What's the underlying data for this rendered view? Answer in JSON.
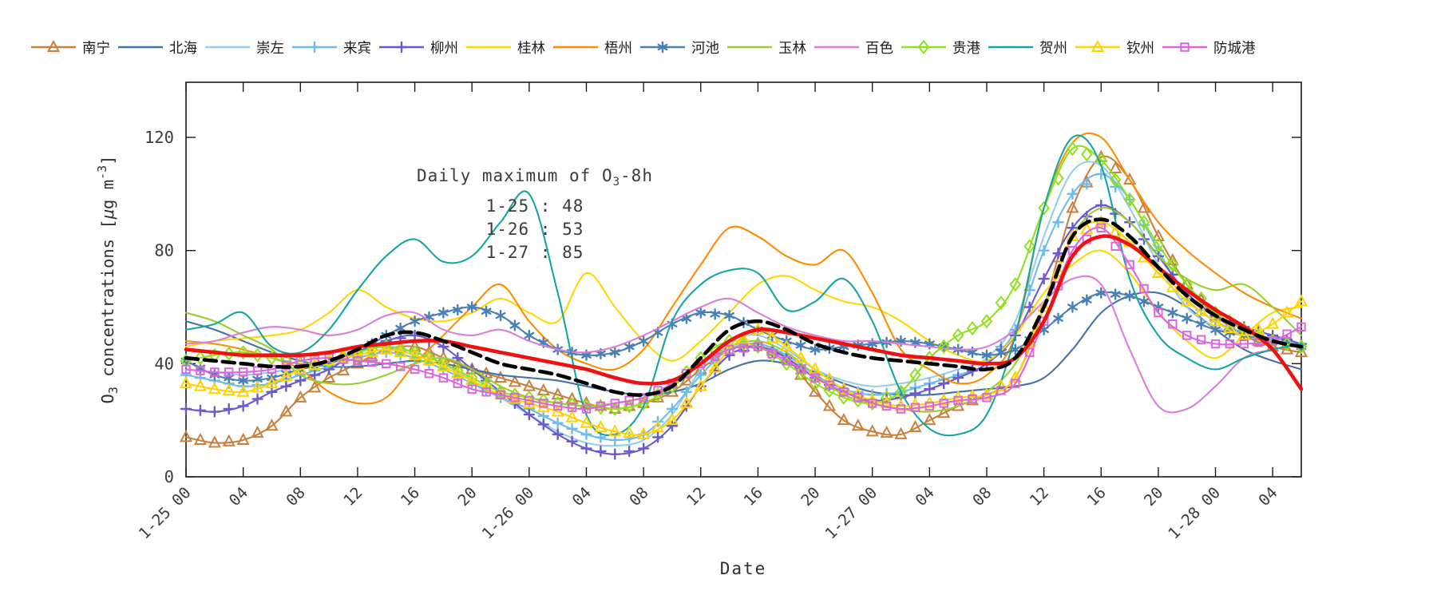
{
  "figure": {
    "background": "#ffffff"
  },
  "legend": {
    "items": [
      {
        "label": "南宁",
        "color": "#C8803C",
        "marker": "triangle"
      },
      {
        "label": "北海",
        "color": "#4472A8",
        "marker": "none"
      },
      {
        "label": "崇左",
        "color": "#93CEF0",
        "marker": "none"
      },
      {
        "label": "来宾",
        "color": "#6FBBEE",
        "marker": "plus"
      },
      {
        "label": "柳州",
        "color": "#6A5ACD",
        "marker": "plus"
      },
      {
        "label": "桂林",
        "color": "#FFD700",
        "marker": "none"
      },
      {
        "label": "梧州",
        "color": "#FF8C00",
        "marker": "none"
      },
      {
        "label": "河池",
        "color": "#4B80B4",
        "marker": "asterisk"
      },
      {
        "label": "玉林",
        "color": "#9ACD32",
        "marker": "none"
      },
      {
        "label": "百色",
        "color": "#D97FD9",
        "marker": "none"
      },
      {
        "label": "贵港",
        "color": "#8FE01E",
        "marker": "diamond"
      },
      {
        "label": "贺州",
        "color": "#17A5A0",
        "marker": "none"
      },
      {
        "label": "钦州",
        "color": "#FFD200",
        "marker": "triangle"
      },
      {
        "label": "防城港",
        "color": "#DC66DC",
        "marker": "square"
      }
    ]
  },
  "annotation": {
    "title_prefix": "Daily maximum of O",
    "title_sub": "3",
    "title_suffix": "-8h",
    "lines": [
      "1-25 : 48",
      "1-26 : 53",
      "1-27 : 85"
    ]
  },
  "axes": {
    "xlabel": "Date",
    "ylabel": {
      "prefix": "O",
      "sub": "3",
      "mid": " concentrations [",
      "mu": "μ",
      "unit": "g m",
      "sup": "-3",
      "close": "]"
    },
    "yticks": [
      0,
      40,
      80,
      120
    ],
    "xtick_step_hours": 4,
    "xtick_labels": [
      "1-25 00",
      "04",
      "08",
      "12",
      "16",
      "20",
      "1-26 00",
      "04",
      "08",
      "12",
      "16",
      "20",
      "1-27 00",
      "04",
      "08",
      "12",
      "16",
      "20",
      "1-28 00",
      "04"
    ]
  },
  "chart_data": {
    "type": "line",
    "title": "",
    "xlabel": "Date",
    "ylabel": "O3 concentrations [ug m-3]",
    "x_start_hour": 0,
    "x_step_hours": 2,
    "x_end_hour": 78,
    "x_axis_note": "hours since 1-25 00:00, hourly ozone, sampled every 2 h",
    "ylim": [
      0,
      139
    ],
    "grid": false,
    "legend_position": "top-row-outside",
    "annotation_values": {
      "1-25": 48,
      "1-26": 53,
      "1-27": 85
    },
    "series": [
      {
        "name": "南宁",
        "color": "#C8803C",
        "marker": "triangle",
        "width": 2.1,
        "in_legend": true,
        "values": [
          14,
          12,
          13,
          18,
          28,
          35,
          40,
          45,
          46,
          42,
          38,
          35,
          32,
          29,
          26,
          24,
          26,
          30,
          38,
          45,
          47,
          42,
          30,
          20,
          16,
          15,
          20,
          25,
          29,
          35,
          60,
          95,
          113,
          105,
          85,
          68,
          57,
          50,
          46,
          44
        ]
      },
      {
        "name": "北海",
        "color": "#4472A8",
        "marker": "none",
        "width": 2.1,
        "in_legend": true,
        "values": [
          55,
          52,
          48,
          44,
          41,
          39,
          39,
          40,
          41,
          40,
          38,
          36,
          35,
          34,
          32,
          30,
          29,
          30,
          33,
          38,
          41,
          40,
          37,
          33,
          30,
          29,
          29,
          30,
          31,
          32,
          35,
          45,
          58,
          64,
          65,
          60,
          52,
          45,
          41,
          38
        ]
      },
      {
        "name": "崇左",
        "color": "#93CEF0",
        "marker": "none",
        "width": 2.1,
        "in_legend": true,
        "values": [
          38,
          37,
          36,
          37,
          39,
          41,
          43,
          45,
          44,
          40,
          34,
          28,
          22,
          16,
          12,
          11,
          13,
          22,
          38,
          48,
          50,
          45,
          38,
          34,
          32,
          33,
          35,
          38,
          42,
          55,
          85,
          108,
          110,
          95,
          75,
          60,
          53,
          50,
          48,
          47
        ]
      },
      {
        "name": "来宾",
        "color": "#6FBBEE",
        "marker": "plus",
        "width": 2.1,
        "in_legend": true,
        "values": [
          36,
          34,
          32,
          33,
          36,
          39,
          42,
          44,
          42,
          38,
          33,
          28,
          24,
          19,
          15,
          13,
          15,
          24,
          36,
          45,
          47,
          43,
          36,
          31,
          29,
          30,
          33,
          36,
          40,
          52,
          80,
          100,
          107,
          98,
          80,
          63,
          55,
          51,
          49,
          47
        ]
      },
      {
        "name": "柳州",
        "color": "#6A5ACD",
        "marker": "plus",
        "width": 2.1,
        "in_legend": true,
        "values": [
          24,
          23,
          25,
          30,
          34,
          38,
          44,
          48,
          50,
          46,
          38,
          30,
          22,
          15,
          10,
          8,
          10,
          18,
          32,
          43,
          46,
          42,
          35,
          30,
          27,
          28,
          31,
          35,
          40,
          50,
          70,
          88,
          96,
          90,
          78,
          65,
          57,
          53,
          50,
          47
        ]
      },
      {
        "name": "桂林",
        "color": "#FFD700",
        "marker": "none",
        "width": 2.1,
        "in_legend": true,
        "values": [
          46,
          48,
          49,
          50,
          52,
          58,
          66,
          60,
          56,
          55,
          58,
          63,
          58,
          55,
          72,
          60,
          48,
          41,
          48,
          58,
          68,
          71,
          66,
          62,
          60,
          55,
          48,
          43,
          41,
          50,
          65,
          75,
          80,
          72,
          58,
          48,
          42,
          50,
          58,
          60
        ]
      },
      {
        "name": "梧州",
        "color": "#FF8C00",
        "marker": "none",
        "width": 2.1,
        "in_legend": true,
        "values": [
          48,
          47,
          45,
          42,
          38,
          30,
          26,
          28,
          40,
          50,
          60,
          68,
          55,
          45,
          40,
          38,
          45,
          60,
          75,
          88,
          85,
          78,
          75,
          80,
          65,
          45,
          38,
          33,
          36,
          50,
          95,
          118,
          120,
          105,
          90,
          80,
          72,
          65,
          60,
          56
        ]
      },
      {
        "name": "河池",
        "color": "#4B80B4",
        "marker": "asterisk",
        "width": 2.1,
        "in_legend": true,
        "values": [
          41,
          36,
          34,
          35,
          38,
          40,
          44,
          50,
          55,
          58,
          60,
          57,
          50,
          45,
          43,
          44,
          48,
          54,
          58,
          57,
          52,
          48,
          45,
          46,
          47,
          48,
          47,
          45,
          43,
          45,
          52,
          60,
          65,
          64,
          60,
          56,
          52,
          50,
          48,
          46
        ]
      },
      {
        "name": "玉林",
        "color": "#9ACD32",
        "marker": "none",
        "width": 2.1,
        "in_legend": true,
        "values": [
          58,
          55,
          50,
          45,
          36,
          33,
          33,
          36,
          40,
          42,
          38,
          32,
          28,
          26,
          25,
          26,
          28,
          32,
          40,
          46,
          48,
          44,
          36,
          29,
          26,
          24,
          23,
          25,
          30,
          40,
          60,
          85,
          95,
          90,
          78,
          70,
          66,
          68,
          60,
          50
        ]
      },
      {
        "name": "百色",
        "color": "#D97FD9",
        "marker": "none",
        "width": 2.1,
        "in_legend": true,
        "values": [
          47,
          48,
          51,
          53,
          52,
          50,
          52,
          57,
          58,
          52,
          50,
          52,
          48,
          45,
          44,
          46,
          50,
          55,
          60,
          63,
          58,
          53,
          50,
          48,
          48,
          47,
          46,
          45,
          46,
          52,
          62,
          70,
          68,
          45,
          25,
          24,
          32,
          42,
          45,
          47
        ]
      },
      {
        "name": "贵港",
        "color": "#8FE01E",
        "marker": "diamond",
        "width": 2.1,
        "in_legend": true,
        "values": [
          41,
          43,
          44,
          42,
          40,
          41,
          44,
          46,
          44,
          40,
          35,
          30,
          28,
          26,
          25,
          24,
          26,
          32,
          42,
          48,
          46,
          40,
          33,
          28,
          26,
          30,
          42,
          50,
          55,
          68,
          95,
          116,
          112,
          98,
          82,
          68,
          58,
          52,
          48,
          46
        ]
      },
      {
        "name": "贺州",
        "color": "#17A5A0",
        "marker": "none",
        "width": 2.1,
        "in_legend": true,
        "values": [
          52,
          54,
          58,
          46,
          44,
          52,
          66,
          78,
          84,
          76,
          78,
          90,
          100,
          65,
          22,
          15,
          25,
          55,
          68,
          73,
          72,
          59,
          62,
          70,
          55,
          30,
          17,
          15,
          22,
          50,
          95,
          120,
          110,
          70,
          50,
          42,
          38,
          42,
          45,
          47
        ]
      },
      {
        "name": "钦州",
        "color": "#FFD200",
        "marker": "triangle",
        "width": 2.1,
        "in_legend": true,
        "values": [
          33,
          31,
          30,
          33,
          38,
          41,
          43,
          45,
          43,
          39,
          34,
          29,
          26,
          23,
          19,
          16,
          15,
          20,
          32,
          45,
          52,
          46,
          38,
          31,
          27,
          25,
          26,
          28,
          29,
          35,
          60,
          85,
          90,
          83,
          72,
          62,
          55,
          50,
          54,
          62
        ]
      },
      {
        "name": "防城港",
        "color": "#DC66DC",
        "marker": "square",
        "width": 2.1,
        "in_legend": true,
        "values": [
          38,
          37,
          37,
          38,
          41,
          42,
          41,
          40,
          38,
          35,
          31,
          29,
          27,
          25,
          24,
          26,
          28,
          33,
          40,
          45,
          46,
          41,
          35,
          30,
          26,
          24,
          25,
          27,
          28,
          33,
          55,
          80,
          88,
          75,
          58,
          50,
          47,
          47,
          48,
          53
        ]
      },
      {
        "name": "thick-red (unlabeled mean)",
        "color": "#EE1111",
        "marker": "none",
        "width": 4.6,
        "in_legend": false,
        "values": [
          45,
          44,
          43,
          43,
          43,
          44,
          46,
          47,
          48,
          48,
          46,
          44,
          42,
          40,
          38,
          35,
          33,
          34,
          40,
          48,
          52,
          51,
          49,
          47,
          45,
          43,
          42,
          41,
          40,
          42,
          55,
          78,
          85,
          82,
          74,
          66,
          59,
          53,
          45,
          31
        ]
      },
      {
        "name": "thick-black-dashed (unlabeled mean)",
        "color": "#000000",
        "marker": "none",
        "width": 4.6,
        "dash": "15 8",
        "in_legend": false,
        "values": [
          42,
          41,
          40,
          39,
          39,
          41,
          45,
          50,
          51,
          48,
          44,
          40,
          38,
          36,
          33,
          30,
          29,
          32,
          42,
          52,
          55,
          52,
          47,
          44,
          42,
          41,
          40,
          39,
          38,
          42,
          60,
          85,
          91,
          85,
          74,
          64,
          57,
          52,
          48,
          46
        ]
      }
    ]
  }
}
